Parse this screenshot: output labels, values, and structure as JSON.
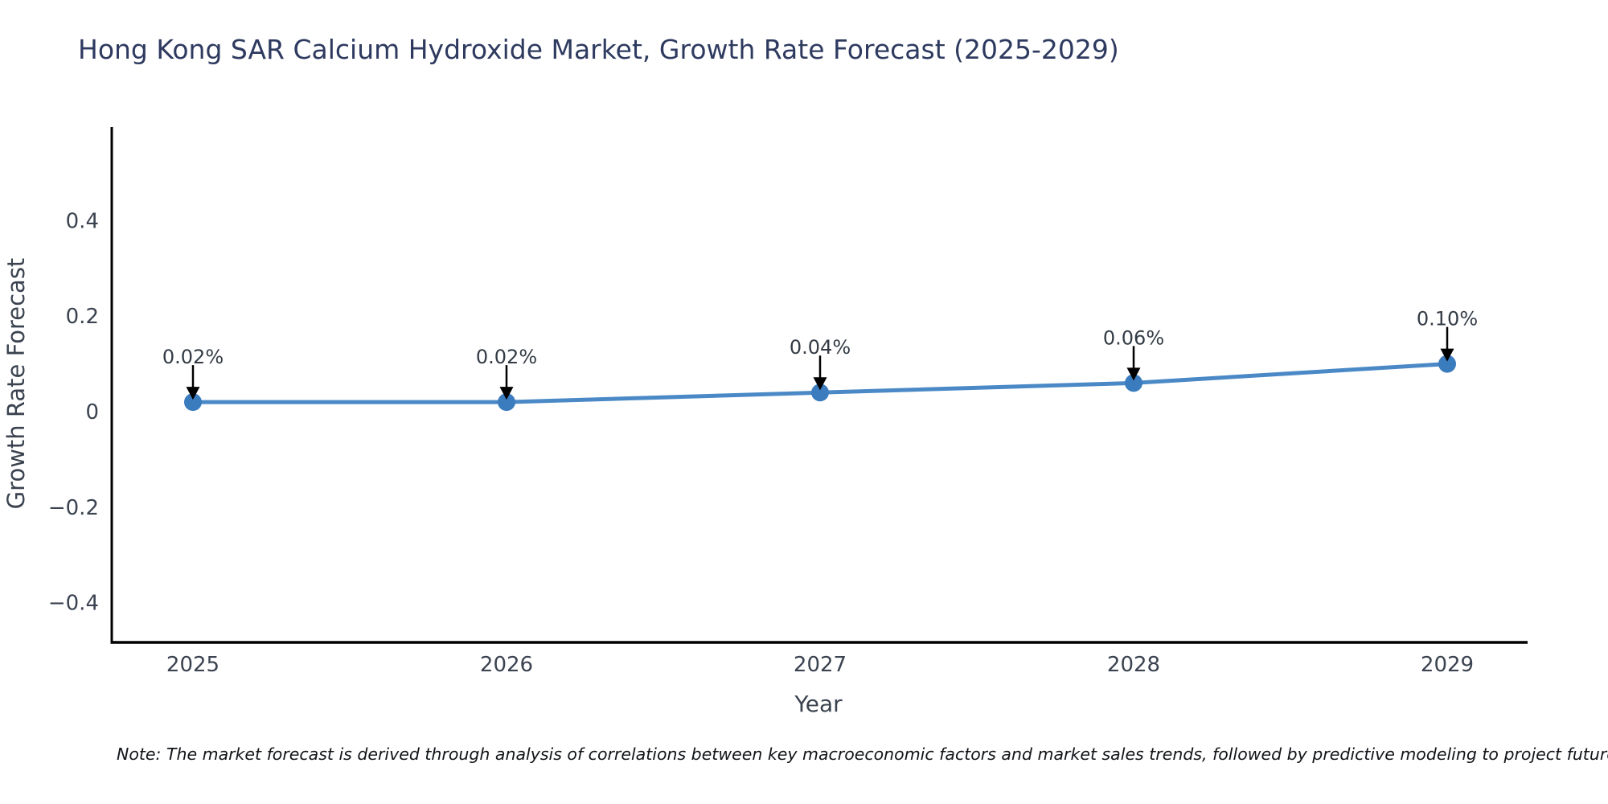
{
  "title": "Hong Kong SAR Calcium Hydroxide Market, Growth Rate Forecast (2025-2029)",
  "note": "Note: The market forecast is derived through analysis of correlations between key macroeconomic factors and market sales trends, followed by predictive modeling to project future sa",
  "chart_data": {
    "type": "line",
    "title": "Hong Kong SAR Calcium Hydroxide Market, Growth Rate Forecast (2025-2029)",
    "xlabel": "Year",
    "ylabel": "Growth Rate Forecast",
    "categories": [
      "2025",
      "2026",
      "2027",
      "2028",
      "2029"
    ],
    "values": [
      0.02,
      0.02,
      0.04,
      0.06,
      0.1
    ],
    "point_labels": [
      "0.02%",
      "0.02%",
      "0.04%",
      "0.06%",
      "0.10%"
    ],
    "yticks": [
      "0.4",
      "0.2",
      "0",
      "−0.2",
      "−0.4"
    ],
    "ytick_values": [
      0.4,
      0.2,
      0,
      -0.2,
      -0.4
    ],
    "ylim": [
      -0.49,
      0.6
    ],
    "grid": false,
    "legend_position": "none",
    "colors": {
      "line": "#4a89c6",
      "marker": "#3a7cbe",
      "spine": "#000000",
      "arrow": "#000000",
      "title_text": "#2e3a5f",
      "axis_text": "#3b4350",
      "annotation_text": "#333b45"
    }
  }
}
